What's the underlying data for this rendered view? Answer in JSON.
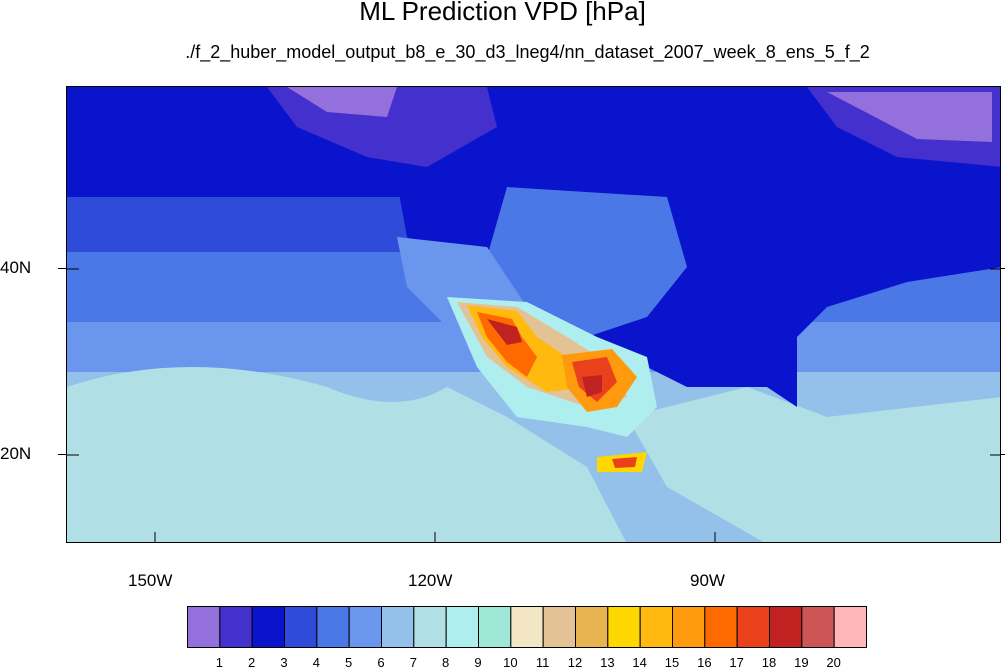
{
  "title": "ML Prediction VPD [hPa]",
  "subtitle": "./f_2_huber_model_output_b8_e_30_d3_lneg4/nn_dataset_2007_week_8_ens_5_f_2",
  "axes": {
    "lat_labels": [
      "40N",
      "20N"
    ],
    "lon_labels": [
      "150W",
      "120W",
      "90W"
    ]
  },
  "colorbar": {
    "labels": [
      "1",
      "2",
      "3",
      "4",
      "5",
      "6",
      "7",
      "8",
      "9",
      "10",
      "11",
      "12",
      "13",
      "14",
      "15",
      "16",
      "17",
      "18",
      "19",
      "20"
    ],
    "colors": [
      "#9370DB",
      "#4430CC",
      "#0A14CC",
      "#2E4BD9",
      "#4A78E6",
      "#6B96EE",
      "#94C1EA",
      "#B0E0E6",
      "#AFEEEE",
      "#9FE8D8",
      "#F3E6C4",
      "#E3C396",
      "#E8B452",
      "#FFD700",
      "#FFB90F",
      "#FF9A0F",
      "#FF6A00",
      "#E8411B",
      "#C02222",
      "#CD5555",
      "#FFB6B6"
    ]
  },
  "colors": {
    "ocean_north": "#0A14CC",
    "ocean_mid": "#4A78E6",
    "ocean_south": "#94C1EA",
    "land_east": "#0A14CC",
    "hotspot": "#E8411B"
  }
}
